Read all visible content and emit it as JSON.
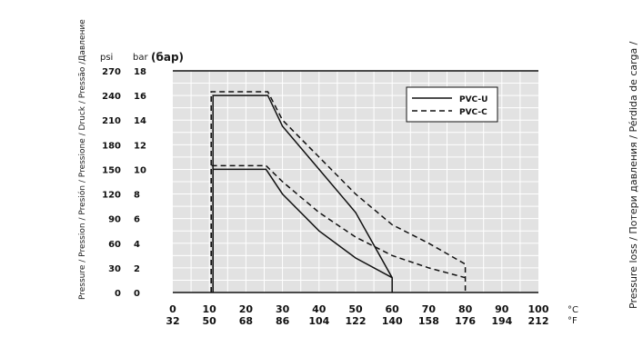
{
  "chart_data": {
    "type": "line",
    "y_axis_title": "Pressure / Pression / Presión / Pressione / Druck / Pressão /Давление",
    "right_title": "Pressure loss / Потери давления / Pérdida de carga /",
    "psi_label": "psi",
    "bar_label": "bar",
    "bar_ru_label": "(бар)",
    "celsius_unit": "°C",
    "fahrenheit_unit": "°F",
    "psi_ticks": [
      "270",
      "240",
      "210",
      "180",
      "150",
      "120",
      "90",
      "60",
      "30",
      "0"
    ],
    "bar_ticks": [
      "18",
      "16",
      "14",
      "12",
      "10",
      "8",
      "6",
      "4",
      "2",
      "0"
    ],
    "x_celsius_ticks": [
      "0",
      "10",
      "20",
      "30",
      "40",
      "50",
      "60",
      "70",
      "80",
      "90",
      "100"
    ],
    "x_fahrenheit_ticks": [
      "32",
      "50",
      "68",
      "86",
      "104",
      "122",
      "140",
      "158",
      "176",
      "194",
      "212"
    ],
    "xlim": [
      0,
      100
    ],
    "ylim": [
      0,
      18
    ],
    "grid": true,
    "legend_position": "top-right",
    "series": [
      {
        "name": "PVC-U",
        "style": "solid",
        "segment": "upper",
        "x": [
          11,
          11,
          26,
          30,
          40,
          50,
          60,
          60
        ],
        "y": [
          0,
          16,
          16,
          13.5,
          10,
          6.5,
          1.2,
          0
        ]
      },
      {
        "name": "PVC-U",
        "style": "solid",
        "segment": "lower",
        "x": [
          11,
          11,
          25.5,
          30,
          40,
          50,
          60
        ],
        "y": [
          0,
          10,
          10,
          8,
          5,
          2.8,
          1.2
        ]
      },
      {
        "name": "PVC-C",
        "style": "dashed",
        "segment": "upper",
        "x": [
          10.5,
          10.5,
          26,
          30,
          40,
          50,
          60,
          70,
          80,
          80
        ],
        "y": [
          0,
          16.3,
          16.3,
          14,
          11,
          8,
          5.5,
          4,
          2.3,
          0
        ]
      },
      {
        "name": "PVC-C",
        "style": "dashed",
        "segment": "lower",
        "x": [
          10.5,
          10.5,
          25.5,
          30,
          40,
          50,
          60,
          70,
          80
        ],
        "y": [
          0,
          10.3,
          10.3,
          9,
          6.5,
          4.5,
          3,
          2,
          1.2
        ]
      }
    ],
    "legend": [
      {
        "label": "PVC-U",
        "style": "solid"
      },
      {
        "label": "PVC-C",
        "style": "dashed"
      }
    ]
  }
}
